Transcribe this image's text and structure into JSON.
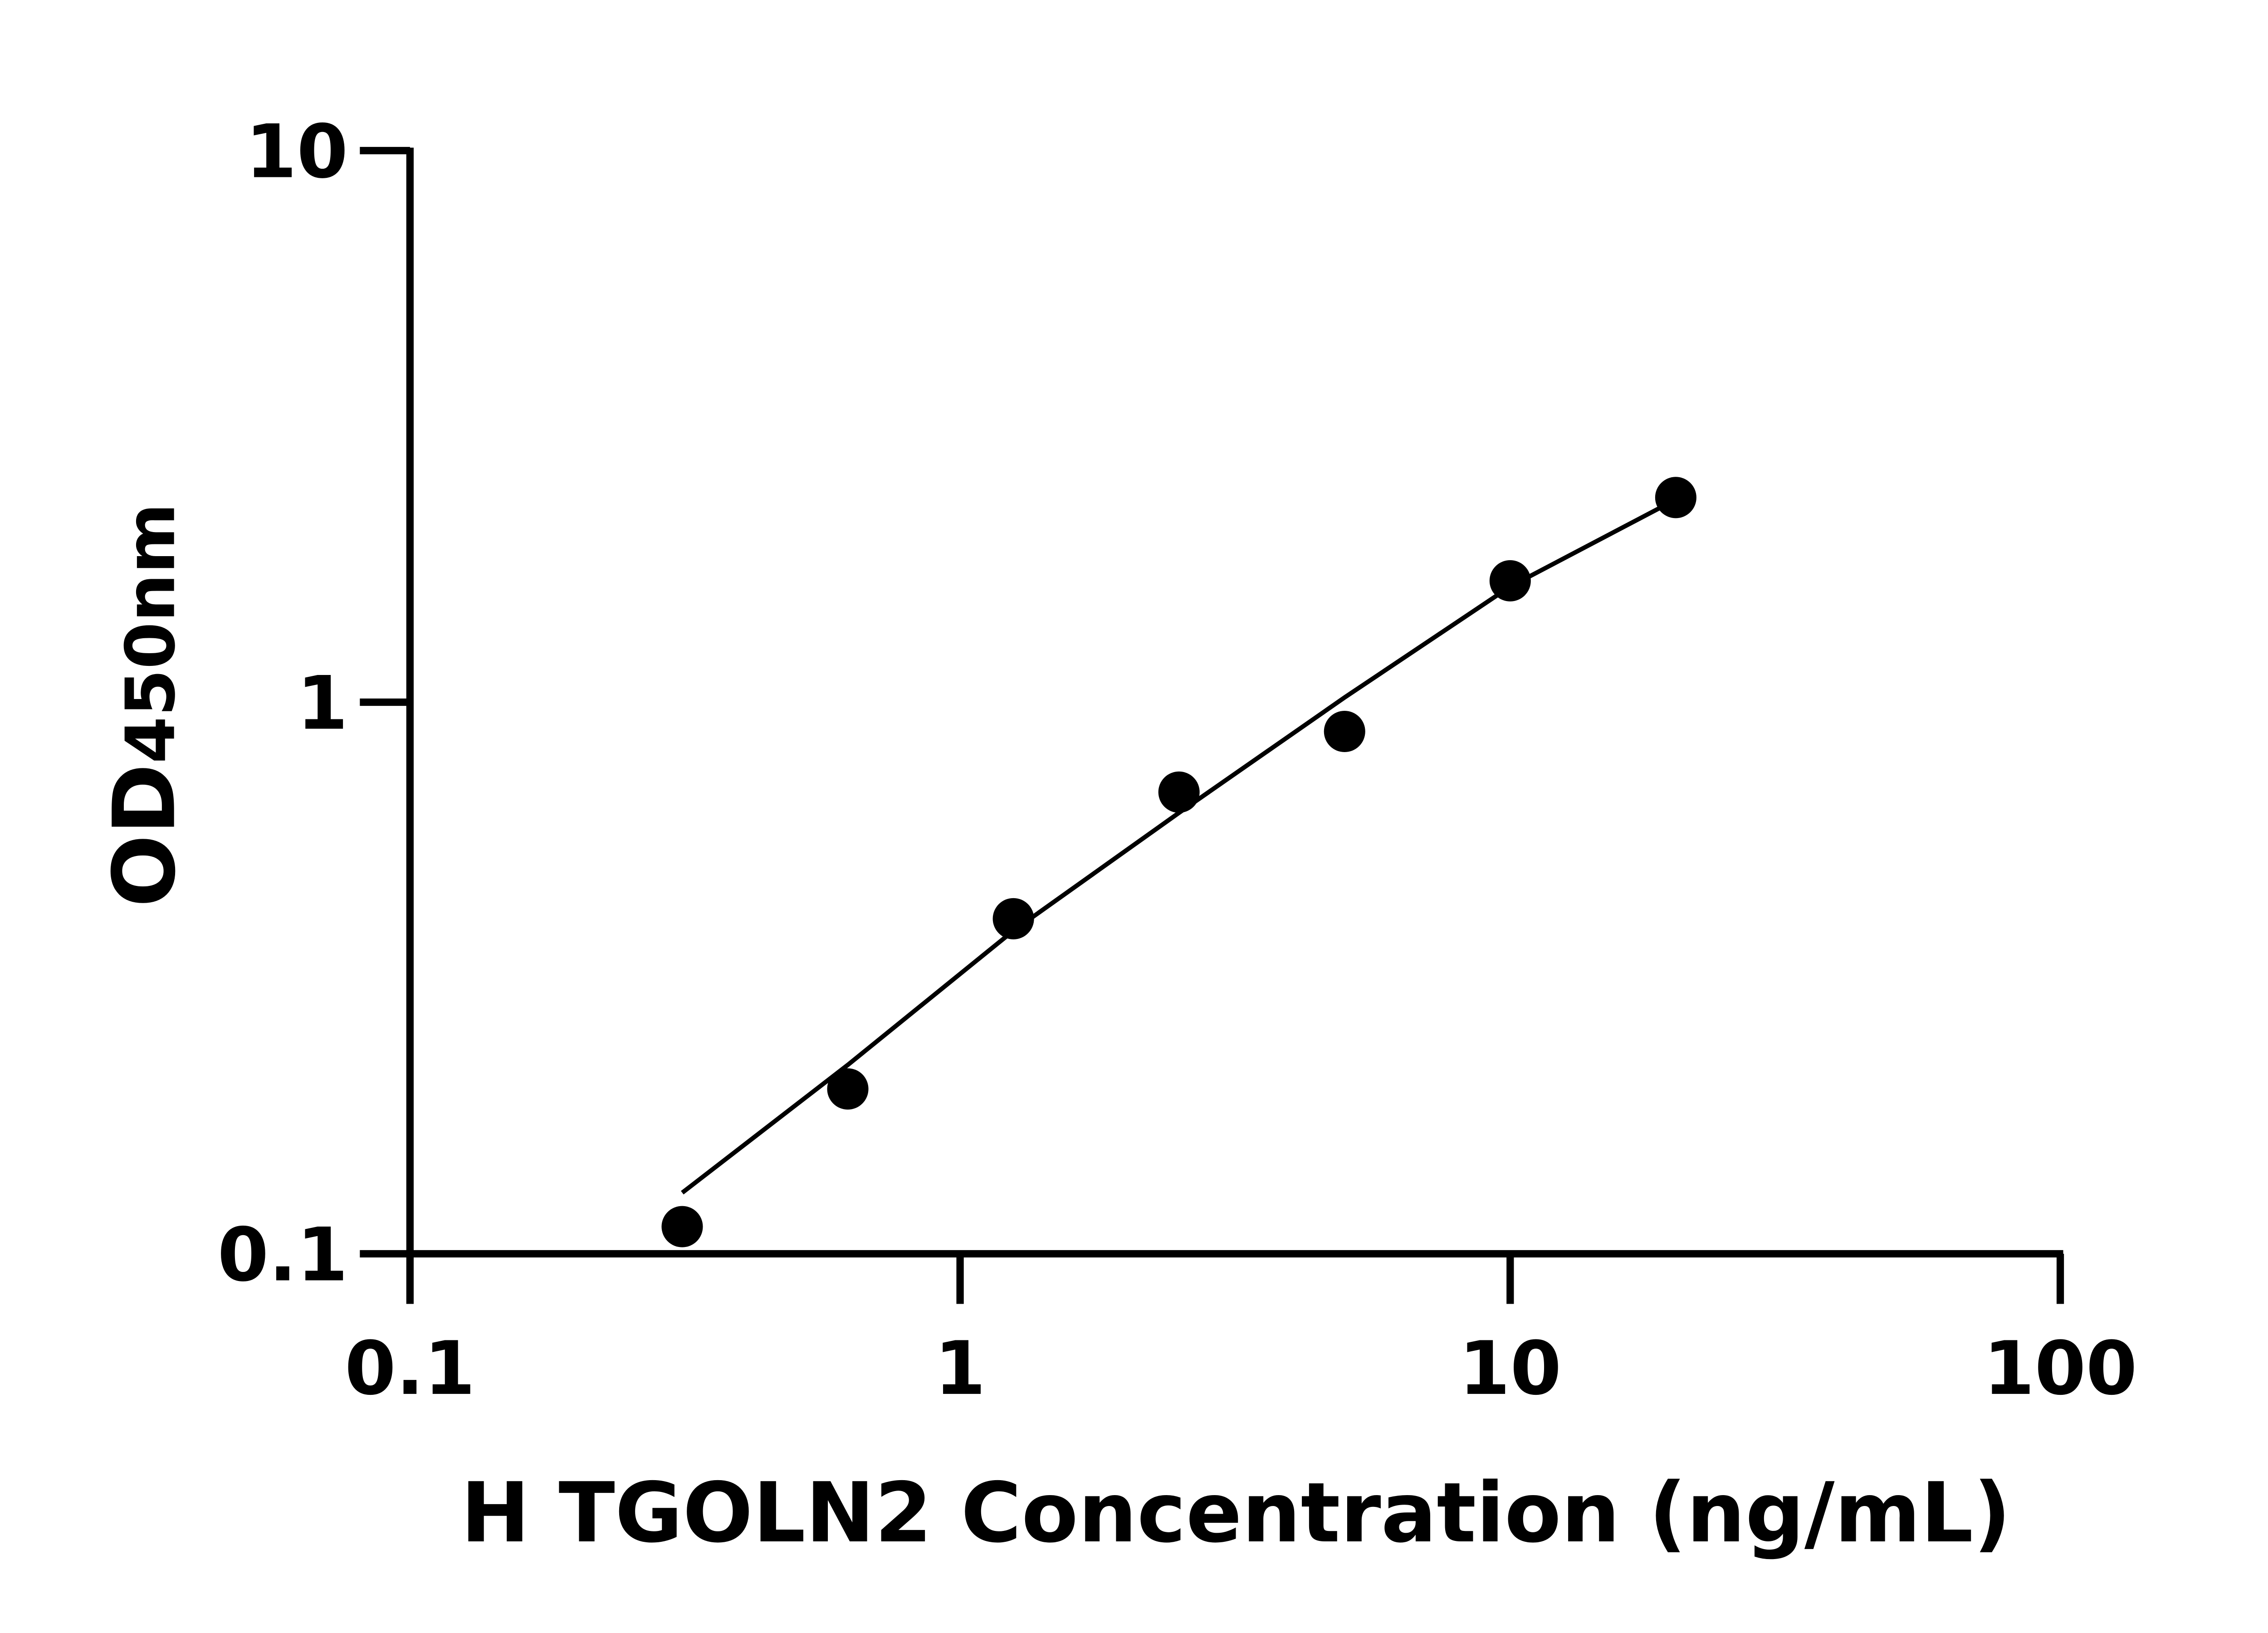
{
  "chart_data": {
    "type": "scatter",
    "title": "",
    "xlabel": "H TGOLN2 Concentration (ng/mL)",
    "ylabel_main": "OD",
    "ylabel_sub": "450nm",
    "x_scale": "log",
    "y_scale": "log",
    "xlim": [
      0.1,
      100
    ],
    "ylim": [
      0.1,
      10
    ],
    "x_ticks": [
      "0.1",
      "1",
      "10",
      "100"
    ],
    "y_ticks": [
      "0.1",
      "1",
      "10"
    ],
    "grid": false,
    "color": "#000000",
    "points": {
      "x": [
        0.3125,
        0.625,
        1.25,
        2.5,
        5,
        10,
        20
      ],
      "y": [
        0.112,
        0.199,
        0.405,
        0.687,
        0.885,
        1.66,
        2.35
      ]
    },
    "fit_curve": {
      "x": [
        0.3125,
        0.625,
        1.25,
        2.5,
        5,
        10,
        20
      ],
      "y": [
        0.129,
        0.22,
        0.385,
        0.63,
        1.02,
        1.62,
        2.33
      ]
    }
  }
}
